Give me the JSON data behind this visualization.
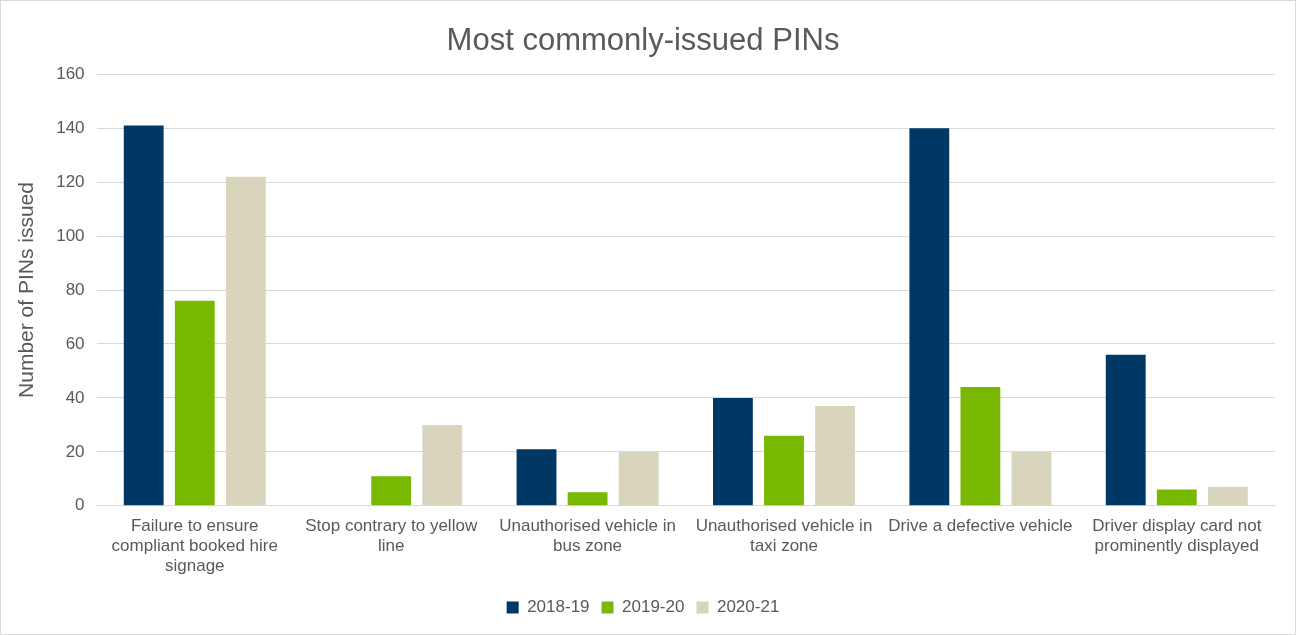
{
  "chart_data": {
    "type": "bar",
    "title": "Most commonly-issued PINs",
    "ylabel": "Number of PINs issued",
    "categories": [
      "Failure to ensure compliant booked hire signage",
      "Stop contrary to yellow line",
      "Unauthorised vehicle in bus zone",
      "Unauthorised vehicle in taxi zone",
      "Drive a defective vehicle",
      "Driver display card not prominently displayed"
    ],
    "series": [
      {
        "name": "2018-19",
        "color": "#003865",
        "values": [
          141,
          0,
          21,
          40,
          140,
          56
        ]
      },
      {
        "name": "2019-20",
        "color": "#78b800",
        "values": [
          76,
          11,
          5,
          26,
          44,
          6
        ]
      },
      {
        "name": "2020-21",
        "color": "#d9d5bd",
        "values": [
          122,
          30,
          20,
          37,
          20,
          7
        ]
      }
    ],
    "ylim": [
      0,
      160
    ],
    "yticks": [
      0,
      20,
      40,
      60,
      80,
      100,
      120,
      140,
      160
    ],
    "grid": "y",
    "legend": "bottom"
  }
}
